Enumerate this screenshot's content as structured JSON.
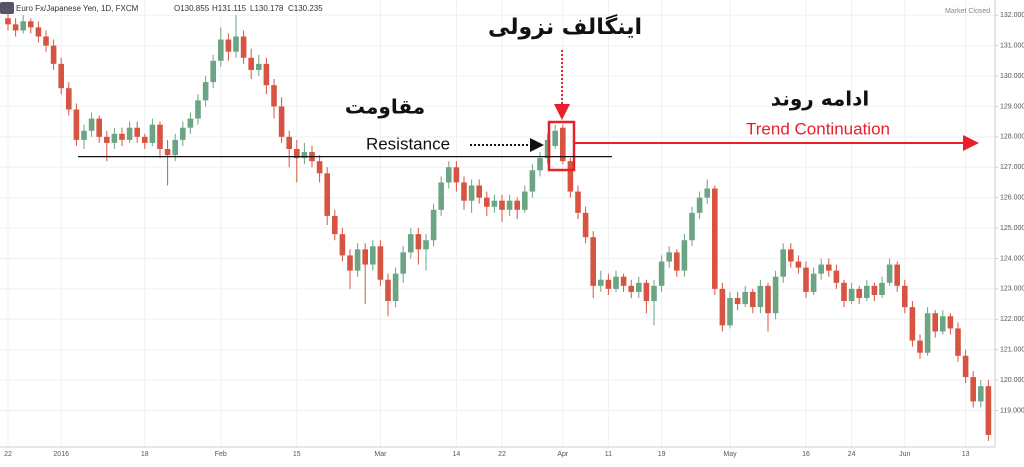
{
  "chart_data": {
    "type": "candlestick",
    "title": "Euro Fx/Japanese Yen, 1D, FXCM",
    "ohlc_readout": [
      "O130.855",
      "H131.115",
      "L130.178",
      "C130.235"
    ],
    "status": "Market Closed",
    "annotations": {
      "engulfing": "اینگالف نزولی",
      "resistance_fa": "مقاومت",
      "resistance": "Resistance",
      "continuation_fa": "ادامه روند",
      "continuation": "Trend Continuation"
    },
    "resistance_line": 127.35,
    "up_color": "#6ba583",
    "down_color": "#d75442",
    "grid": true,
    "ylim": [
      117.8,
      132.5
    ],
    "yticks": [
      {
        "value": 119,
        "label": "119.000"
      },
      {
        "value": 120,
        "label": "120.000"
      },
      {
        "value": 121,
        "label": "121.000"
      },
      {
        "value": 122,
        "label": "122.000"
      },
      {
        "value": 123,
        "label": "123.000"
      },
      {
        "value": 124,
        "label": "124.000"
      },
      {
        "value": 125,
        "label": "125.000"
      },
      {
        "value": 126,
        "label": "126.000"
      },
      {
        "value": 127,
        "label": "127.000"
      },
      {
        "value": 128,
        "label": "128.000"
      },
      {
        "value": 129,
        "label": "129.000"
      },
      {
        "value": 130,
        "label": "130.000"
      },
      {
        "value": 131,
        "label": "131.000"
      },
      {
        "value": 132,
        "label": "132.000"
      }
    ],
    "categories": [
      "22",
      null,
      null,
      null,
      null,
      null,
      null,
      "2016",
      null,
      null,
      null,
      null,
      null,
      null,
      null,
      null,
      null,
      null,
      "18",
      null,
      null,
      null,
      null,
      null,
      null,
      null,
      null,
      null,
      "Feb",
      null,
      null,
      null,
      null,
      null,
      null,
      null,
      null,
      null,
      "15",
      null,
      null,
      null,
      null,
      null,
      null,
      null,
      null,
      null,
      null,
      "Mar",
      null,
      null,
      null,
      null,
      null,
      null,
      null,
      null,
      null,
      "14",
      null,
      null,
      null,
      null,
      null,
      "22",
      null,
      null,
      null,
      null,
      null,
      null,
      null,
      "Apr",
      null,
      null,
      null,
      null,
      null,
      "11",
      null,
      null,
      null,
      null,
      null,
      null,
      "19",
      null,
      null,
      null,
      null,
      null,
      null,
      null,
      null,
      "May",
      null,
      null,
      null,
      null,
      null,
      null,
      null,
      null,
      null,
      "16",
      null,
      null,
      null,
      null,
      null,
      "24",
      null,
      null,
      null,
      null,
      null,
      null,
      "Jun",
      null,
      null,
      null,
      null,
      null,
      null,
      null,
      "13",
      null,
      null,
      null
    ],
    "ohlc": [
      [
        131.9,
        132.1,
        131.5,
        131.7
      ],
      [
        131.7,
        131.9,
        131.3,
        131.5
      ],
      [
        131.5,
        132.0,
        131.4,
        131.8
      ],
      [
        131.8,
        131.9,
        131.4,
        131.6
      ],
      [
        131.6,
        131.8,
        131.1,
        131.3
      ],
      [
        131.3,
        131.5,
        130.8,
        131.0
      ],
      [
        131.0,
        131.2,
        130.2,
        130.4
      ],
      [
        130.4,
        130.6,
        129.4,
        129.6
      ],
      [
        129.6,
        129.8,
        128.7,
        128.9
      ],
      [
        128.9,
        129.1,
        127.7,
        127.9
      ],
      [
        127.9,
        128.4,
        127.6,
        128.2
      ],
      [
        128.2,
        128.8,
        128.0,
        128.6
      ],
      [
        128.6,
        128.7,
        127.8,
        128.0
      ],
      [
        128.0,
        128.2,
        127.2,
        127.8
      ],
      [
        127.8,
        128.3,
        127.6,
        128.1
      ],
      [
        128.1,
        128.3,
        127.7,
        127.9
      ],
      [
        127.9,
        128.5,
        127.8,
        128.3
      ],
      [
        128.3,
        128.5,
        127.8,
        128.0
      ],
      [
        128.0,
        128.1,
        127.6,
        127.8
      ],
      [
        127.8,
        128.6,
        127.7,
        128.4
      ],
      [
        128.4,
        128.5,
        127.3,
        127.6
      ],
      [
        127.6,
        127.9,
        126.4,
        127.4
      ],
      [
        127.4,
        128.1,
        127.2,
        127.9
      ],
      [
        127.9,
        128.5,
        127.7,
        128.3
      ],
      [
        128.3,
        128.8,
        128.1,
        128.6
      ],
      [
        128.6,
        129.4,
        128.4,
        129.2
      ],
      [
        129.2,
        130.0,
        129.0,
        129.8
      ],
      [
        129.8,
        130.7,
        129.6,
        130.5
      ],
      [
        130.5,
        131.6,
        130.3,
        131.2
      ],
      [
        131.2,
        131.4,
        130.5,
        130.8
      ],
      [
        130.8,
        132.0,
        130.6,
        131.3
      ],
      [
        131.3,
        131.5,
        130.4,
        130.6
      ],
      [
        130.6,
        130.9,
        129.9,
        130.2
      ],
      [
        130.2,
        130.7,
        130.0,
        130.4
      ],
      [
        130.4,
        130.6,
        129.4,
        129.7
      ],
      [
        129.7,
        129.9,
        128.6,
        129.0
      ],
      [
        129.0,
        129.3,
        127.8,
        128.0
      ],
      [
        128.0,
        128.2,
        127.0,
        127.6
      ],
      [
        127.6,
        127.9,
        126.5,
        127.3
      ],
      [
        127.3,
        127.8,
        127.1,
        127.5
      ],
      [
        127.5,
        127.7,
        127.0,
        127.2
      ],
      [
        127.2,
        127.4,
        126.5,
        126.8
      ],
      [
        126.8,
        127.0,
        125.1,
        125.4
      ],
      [
        125.4,
        125.6,
        124.6,
        124.8
      ],
      [
        124.8,
        125.0,
        123.9,
        124.1
      ],
      [
        124.1,
        124.3,
        123.0,
        123.6
      ],
      [
        123.6,
        124.5,
        123.4,
        124.3
      ],
      [
        124.3,
        124.5,
        122.5,
        123.8
      ],
      [
        123.8,
        124.6,
        123.6,
        124.4
      ],
      [
        124.4,
        124.6,
        123.1,
        123.3
      ],
      [
        123.3,
        123.5,
        122.1,
        122.6
      ],
      [
        122.6,
        123.7,
        122.4,
        123.5
      ],
      [
        123.5,
        124.4,
        123.2,
        124.2
      ],
      [
        124.2,
        125.0,
        124.0,
        124.8
      ],
      [
        124.8,
        125.0,
        123.8,
        124.3
      ],
      [
        124.3,
        124.8,
        123.6,
        124.6
      ],
      [
        124.6,
        125.8,
        124.4,
        125.6
      ],
      [
        125.6,
        126.7,
        125.4,
        126.5
      ],
      [
        126.5,
        127.2,
        126.3,
        127.0
      ],
      [
        127.0,
        127.2,
        126.2,
        126.5
      ],
      [
        126.5,
        126.7,
        125.6,
        125.9
      ],
      [
        125.9,
        126.6,
        125.5,
        126.4
      ],
      [
        126.4,
        126.6,
        125.8,
        126.0
      ],
      [
        126.0,
        126.2,
        125.4,
        125.7
      ],
      [
        125.7,
        126.1,
        125.5,
        125.9
      ],
      [
        125.9,
        126.1,
        125.2,
        125.6
      ],
      [
        125.6,
        126.1,
        125.4,
        125.9
      ],
      [
        125.9,
        126.0,
        125.3,
        125.6
      ],
      [
        125.6,
        126.4,
        125.5,
        126.2
      ],
      [
        126.2,
        127.1,
        126.0,
        126.9
      ],
      [
        126.9,
        127.5,
        126.7,
        127.3
      ],
      [
        127.3,
        128.1,
        127.1,
        127.9
      ],
      [
        127.7,
        128.4,
        127.6,
        128.2
      ],
      [
        128.3,
        128.4,
        127.1,
        127.2
      ],
      [
        127.2,
        127.3,
        126.0,
        126.2
      ],
      [
        126.2,
        126.4,
        125.3,
        125.5
      ],
      [
        125.5,
        125.7,
        124.5,
        124.7
      ],
      [
        124.7,
        124.9,
        122.7,
        123.1
      ],
      [
        123.1,
        123.6,
        122.9,
        123.3
      ],
      [
        123.3,
        123.5,
        122.8,
        123.0
      ],
      [
        123.0,
        123.6,
        122.9,
        123.4
      ],
      [
        123.4,
        123.5,
        122.9,
        123.1
      ],
      [
        123.1,
        123.3,
        122.7,
        122.9
      ],
      [
        122.9,
        123.4,
        122.7,
        123.2
      ],
      [
        123.2,
        123.3,
        122.2,
        122.6
      ],
      [
        122.6,
        123.3,
        121.8,
        123.1
      ],
      [
        123.1,
        124.1,
        122.9,
        123.9
      ],
      [
        123.9,
        124.4,
        123.7,
        124.2
      ],
      [
        124.2,
        124.3,
        123.4,
        123.6
      ],
      [
        123.6,
        124.8,
        123.4,
        124.6
      ],
      [
        124.6,
        125.7,
        124.4,
        125.5
      ],
      [
        125.5,
        126.2,
        125.3,
        126.0
      ],
      [
        126.0,
        126.6,
        125.8,
        126.3
      ],
      [
        126.3,
        126.4,
        122.8,
        123.0
      ],
      [
        123.0,
        123.2,
        121.6,
        121.8
      ],
      [
        121.8,
        122.9,
        121.7,
        122.7
      ],
      [
        122.7,
        122.9,
        122.3,
        122.5
      ],
      [
        122.5,
        123.1,
        122.4,
        122.9
      ],
      [
        122.9,
        123.0,
        122.2,
        122.4
      ],
      [
        122.4,
        123.3,
        122.2,
        123.1
      ],
      [
        123.1,
        123.2,
        121.6,
        122.2
      ],
      [
        122.2,
        123.6,
        122.0,
        123.4
      ],
      [
        123.4,
        124.5,
        123.2,
        124.3
      ],
      [
        124.3,
        124.5,
        123.7,
        123.9
      ],
      [
        123.9,
        124.1,
        123.5,
        123.7
      ],
      [
        123.7,
        123.9,
        122.7,
        122.9
      ],
      [
        122.9,
        123.7,
        122.8,
        123.5
      ],
      [
        123.5,
        124.0,
        123.3,
        123.8
      ],
      [
        123.8,
        124.0,
        123.4,
        123.6
      ],
      [
        123.6,
        123.8,
        123.0,
        123.2
      ],
      [
        123.2,
        123.3,
        122.4,
        122.6
      ],
      [
        122.6,
        123.2,
        122.5,
        123.0
      ],
      [
        123.0,
        123.1,
        122.5,
        122.7
      ],
      [
        122.7,
        123.3,
        122.6,
        123.1
      ],
      [
        123.1,
        123.2,
        122.6,
        122.8
      ],
      [
        122.8,
        123.4,
        122.7,
        123.2
      ],
      [
        123.2,
        124.0,
        123.1,
        123.8
      ],
      [
        123.8,
        123.9,
        122.9,
        123.1
      ],
      [
        123.1,
        123.3,
        122.2,
        122.4
      ],
      [
        122.4,
        122.6,
        121.1,
        121.3
      ],
      [
        121.3,
        121.5,
        120.7,
        120.9
      ],
      [
        120.9,
        122.4,
        120.8,
        122.2
      ],
      [
        122.2,
        122.3,
        121.4,
        121.6
      ],
      [
        121.6,
        122.3,
        121.5,
        122.1
      ],
      [
        122.1,
        122.2,
        121.5,
        121.7
      ],
      [
        121.7,
        121.9,
        120.6,
        120.8
      ],
      [
        120.8,
        121.0,
        119.9,
        120.1
      ],
      [
        120.1,
        120.3,
        119.1,
        119.3
      ],
      [
        119.3,
        120.0,
        119.1,
        119.8
      ],
      [
        119.8,
        120.0,
        118.0,
        118.2
      ]
    ]
  }
}
